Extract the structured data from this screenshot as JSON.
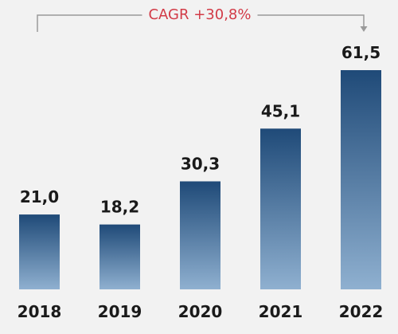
{
  "chart_data": {
    "type": "bar",
    "categories": [
      "2018",
      "2019",
      "2020",
      "2021",
      "2022"
    ],
    "values": [
      21.0,
      18.2,
      30.3,
      45.1,
      61.5
    ],
    "value_labels": [
      "21,0",
      "18,2",
      "30,3",
      "45,1",
      "61,5"
    ],
    "ylim": [
      0,
      61.5
    ],
    "grid": false,
    "annotation": {
      "text": "CAGR +30,8%",
      "from_category": "2018",
      "to_category": "2022"
    }
  },
  "colors": {
    "background": "#f2f2f2",
    "bar_top": "#1f4a78",
    "bar_bottom": "#8fb0d0",
    "annotation_text": "#d23b47",
    "bracket": "#9a9a9a",
    "text": "#1a1a1a"
  }
}
